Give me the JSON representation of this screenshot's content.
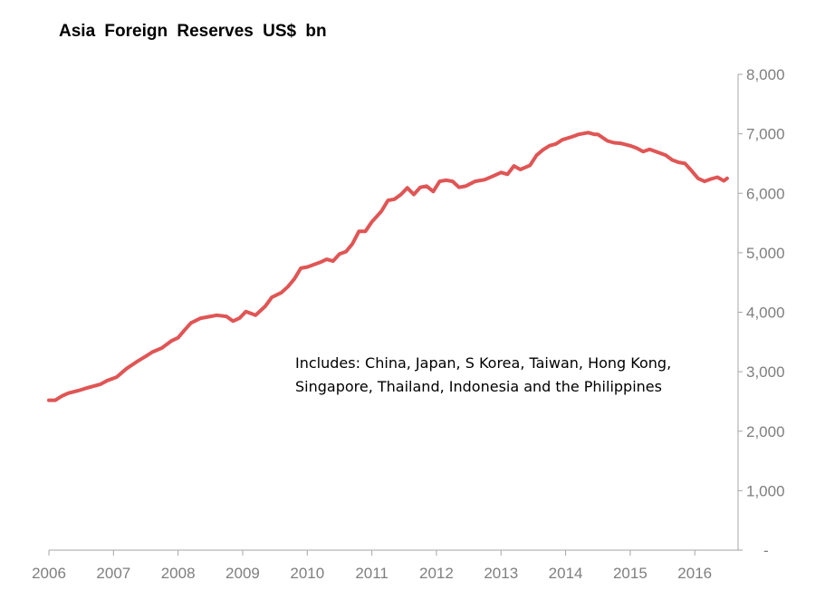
{
  "chart_data": {
    "type": "line",
    "title": "Asia Foreign Reserves US$ bn",
    "annotation": "Includes: China, Japan, S Korea, Taiwan, Hong Kong, Singapore, Thailand, Indonesia and the Philippines",
    "xlabel": "",
    "ylabel": "",
    "x_ticks": [
      "2006",
      "2007",
      "2008",
      "2009",
      "2010",
      "2011",
      "2012",
      "2013",
      "2014",
      "2015",
      "2016"
    ],
    "y_ticks": [
      "-",
      "1,000",
      "2,000",
      "3,000",
      "4,000",
      "5,000",
      "6,000",
      "7,000",
      "8,000"
    ],
    "xlim": [
      2006,
      2016.67
    ],
    "ylim": [
      0,
      8000
    ],
    "y_axis_position": "right",
    "grid": false,
    "color": "#e05555",
    "series": [
      {
        "x": [
          2006.0,
          2006.1,
          2006.2,
          2006.3,
          2006.45,
          2006.6,
          2006.8,
          2006.9,
          2007.05,
          2007.2,
          2007.35,
          2007.5,
          2007.6,
          2007.75,
          2007.9,
          2008.0,
          2008.1,
          2008.2,
          2008.35,
          2008.5,
          2008.6,
          2008.75,
          2008.85,
          2008.95,
          2009.05,
          2009.2,
          2009.35,
          2009.45,
          2009.6,
          2009.7,
          2009.8,
          2009.9,
          2010.0,
          2010.1,
          2010.2,
          2010.3,
          2010.4,
          2010.5,
          2010.6,
          2010.7,
          2010.8,
          2010.9,
          2011.0,
          2011.15,
          2011.25,
          2011.35,
          2011.45,
          2011.55,
          2011.65,
          2011.75,
          2011.85,
          2011.95,
          2012.05,
          2012.15,
          2012.25,
          2012.35,
          2012.45,
          2012.6,
          2012.75,
          2012.9,
          2013.0,
          2013.1,
          2013.2,
          2013.3,
          2013.45,
          2013.55,
          2013.65,
          2013.75,
          2013.85,
          2013.95,
          2014.1,
          2014.2,
          2014.35,
          2014.45,
          2014.5,
          2014.65,
          2014.75,
          2014.85,
          2015.0,
          2015.1,
          2015.2,
          2015.3,
          2015.45,
          2015.55,
          2015.65,
          2015.75,
          2015.85,
          2015.95,
          2016.05,
          2016.15,
          2016.25,
          2016.35,
          2016.45,
          2016.5
        ],
        "y": [
          2520,
          2520,
          2590,
          2640,
          2680,
          2730,
          2790,
          2850,
          2910,
          3050,
          3160,
          3260,
          3330,
          3400,
          3520,
          3570,
          3700,
          3820,
          3900,
          3930,
          3950,
          3930,
          3850,
          3900,
          4010,
          3950,
          4100,
          4250,
          4330,
          4430,
          4560,
          4740,
          4760,
          4800,
          4840,
          4890,
          4860,
          4980,
          5020,
          5150,
          5360,
          5360,
          5520,
          5700,
          5880,
          5900,
          5980,
          6090,
          5980,
          6100,
          6120,
          6030,
          6200,
          6220,
          6200,
          6100,
          6120,
          6200,
          6230,
          6300,
          6350,
          6320,
          6460,
          6400,
          6470,
          6640,
          6730,
          6800,
          6830,
          6900,
          6950,
          6990,
          7020,
          6990,
          6990,
          6880,
          6850,
          6840,
          6800,
          6760,
          6700,
          6740,
          6680,
          6640,
          6560,
          6520,
          6500,
          6380,
          6250,
          6200,
          6240,
          6270,
          6210,
          6250
        ]
      }
    ]
  }
}
